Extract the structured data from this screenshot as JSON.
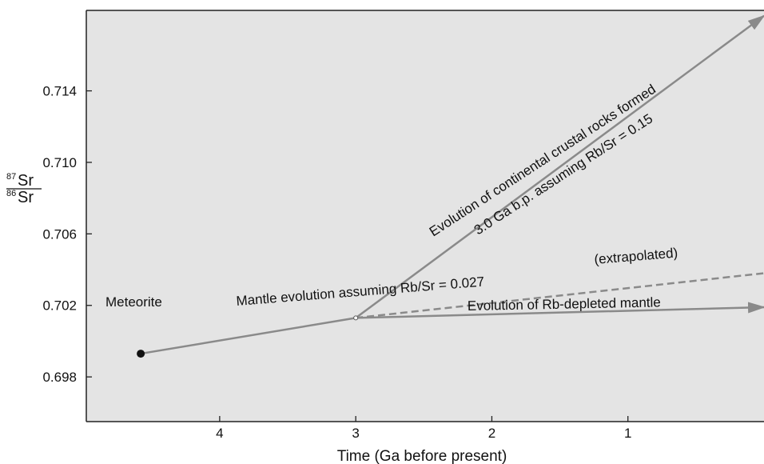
{
  "chart_data": {
    "type": "line",
    "title": "",
    "xlabel": "Time (Ga before present)",
    "ylabel": {
      "numerator_sup": "87",
      "numerator": "Sr",
      "denominator_sup": "86",
      "denominator": "Sr"
    },
    "xlim": [
      4.98,
      0
    ],
    "ylim": [
      0.6955,
      0.7185
    ],
    "x_ticks": [
      {
        "value": 4,
        "label": "4"
      },
      {
        "value": 3,
        "label": "3"
      },
      {
        "value": 2,
        "label": "2"
      },
      {
        "value": 1,
        "label": "1"
      }
    ],
    "y_ticks": [
      {
        "value": 0.698,
        "label": "0.698"
      },
      {
        "value": 0.702,
        "label": "0.702"
      },
      {
        "value": 0.706,
        "label": "0.706"
      },
      {
        "value": 0.71,
        "label": "0.710"
      },
      {
        "value": 0.714,
        "label": "0.714"
      }
    ],
    "grid": false,
    "background_color": "#e4e4e4",
    "line_color": "#8a8a8a",
    "point_color": "#111111",
    "series": [
      {
        "id": "mantle",
        "label": "Mantle evolution assuming Rb/Sr = 0.027",
        "style": "solid",
        "points": [
          [
            4.58,
            0.6993
          ],
          [
            3.0,
            0.7013
          ]
        ]
      },
      {
        "id": "extrapolated",
        "label": "(extrapolated)",
        "style": "dashed",
        "points": [
          [
            3.0,
            0.7013
          ],
          [
            0.0,
            0.7038
          ]
        ]
      },
      {
        "id": "depleted",
        "label": "Evolution of Rb-depleted mantle",
        "style": "solid-arrow",
        "points": [
          [
            3.0,
            0.7013
          ],
          [
            0.0,
            0.7019
          ]
        ]
      },
      {
        "id": "crust",
        "label_line1": "Evolution of continental crustal rocks formed",
        "label_line2": "3.0 Ga b.p. assuming Rb/Sr = 0.15",
        "style": "solid-arrow",
        "points": [
          [
            3.0,
            0.7013
          ],
          [
            0.0,
            0.7182
          ]
        ]
      }
    ],
    "markers": [
      {
        "id": "meteorite",
        "label": "Meteorite",
        "x": 4.58,
        "y": 0.6993,
        "type": "filled"
      },
      {
        "id": "origin",
        "label": "",
        "x": 3.0,
        "y": 0.7013,
        "type": "open"
      }
    ]
  }
}
